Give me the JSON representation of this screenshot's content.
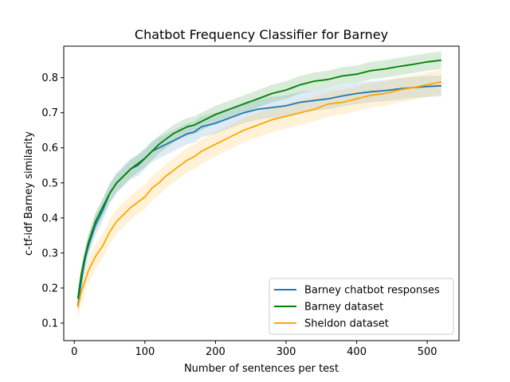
{
  "chart_data": {
    "type": "line",
    "title": "Chatbot Frequency Classifier for Barney",
    "xlabel": "Number of sentences per test",
    "ylabel": "c-tf-idf Barney similarity",
    "xlim": [
      -15,
      545
    ],
    "ylim": [
      0.05,
      0.89
    ],
    "xticks": [
      0,
      100,
      200,
      300,
      400,
      500
    ],
    "yticks": [
      0.1,
      0.2,
      0.3,
      0.4,
      0.5,
      0.6,
      0.7,
      0.8
    ],
    "xtick_labels": [
      "0",
      "100",
      "200",
      "300",
      "400",
      "500"
    ],
    "ytick_labels": [
      "0.1",
      "0.2",
      "0.3",
      "0.4",
      "0.5",
      "0.6",
      "0.7",
      "0.8"
    ],
    "legend_position": "lower-right",
    "grid": false,
    "series": [
      {
        "name": "Barney chatbot responses",
        "color": "#1f77b4",
        "band": 0.03,
        "x": [
          5,
          10,
          15,
          20,
          25,
          30,
          40,
          50,
          60,
          70,
          80,
          90,
          100,
          110,
          120,
          130,
          140,
          150,
          160,
          170,
          180,
          190,
          200,
          220,
          240,
          260,
          280,
          300,
          320,
          340,
          360,
          380,
          400,
          420,
          440,
          460,
          480,
          500,
          520
        ],
        "y": [
          0.15,
          0.22,
          0.28,
          0.32,
          0.35,
          0.38,
          0.42,
          0.47,
          0.5,
          0.52,
          0.54,
          0.55,
          0.57,
          0.59,
          0.6,
          0.61,
          0.62,
          0.63,
          0.64,
          0.645,
          0.66,
          0.665,
          0.67,
          0.685,
          0.7,
          0.71,
          0.715,
          0.72,
          0.73,
          0.735,
          0.74,
          0.748,
          0.755,
          0.76,
          0.763,
          0.768,
          0.772,
          0.775,
          0.777
        ]
      },
      {
        "name": "Barney dataset",
        "color": "#008000",
        "band": 0.025,
        "x": [
          5,
          10,
          15,
          20,
          25,
          30,
          40,
          50,
          60,
          70,
          80,
          90,
          100,
          110,
          120,
          130,
          140,
          150,
          160,
          170,
          180,
          190,
          200,
          220,
          240,
          260,
          280,
          300,
          320,
          340,
          360,
          380,
          400,
          420,
          440,
          460,
          480,
          500,
          520
        ],
        "y": [
          0.17,
          0.24,
          0.29,
          0.33,
          0.36,
          0.39,
          0.43,
          0.47,
          0.5,
          0.52,
          0.54,
          0.555,
          0.57,
          0.59,
          0.61,
          0.625,
          0.64,
          0.65,
          0.66,
          0.665,
          0.675,
          0.685,
          0.695,
          0.71,
          0.725,
          0.74,
          0.755,
          0.765,
          0.78,
          0.79,
          0.795,
          0.805,
          0.81,
          0.82,
          0.825,
          0.832,
          0.838,
          0.845,
          0.85
        ]
      },
      {
        "name": "Sheldon dataset",
        "color": "#ffa500",
        "band": 0.035,
        "x": [
          5,
          10,
          15,
          20,
          25,
          30,
          40,
          50,
          60,
          70,
          80,
          90,
          100,
          110,
          120,
          130,
          140,
          150,
          160,
          170,
          180,
          190,
          200,
          220,
          240,
          260,
          280,
          300,
          320,
          340,
          360,
          380,
          400,
          420,
          440,
          460,
          480,
          500,
          520
        ],
        "y": [
          0.145,
          0.19,
          0.22,
          0.25,
          0.27,
          0.29,
          0.32,
          0.36,
          0.39,
          0.41,
          0.43,
          0.445,
          0.46,
          0.485,
          0.5,
          0.52,
          0.535,
          0.55,
          0.565,
          0.575,
          0.59,
          0.6,
          0.61,
          0.63,
          0.65,
          0.665,
          0.68,
          0.69,
          0.7,
          0.71,
          0.725,
          0.73,
          0.74,
          0.75,
          0.755,
          0.765,
          0.772,
          0.78,
          0.788
        ]
      }
    ]
  }
}
